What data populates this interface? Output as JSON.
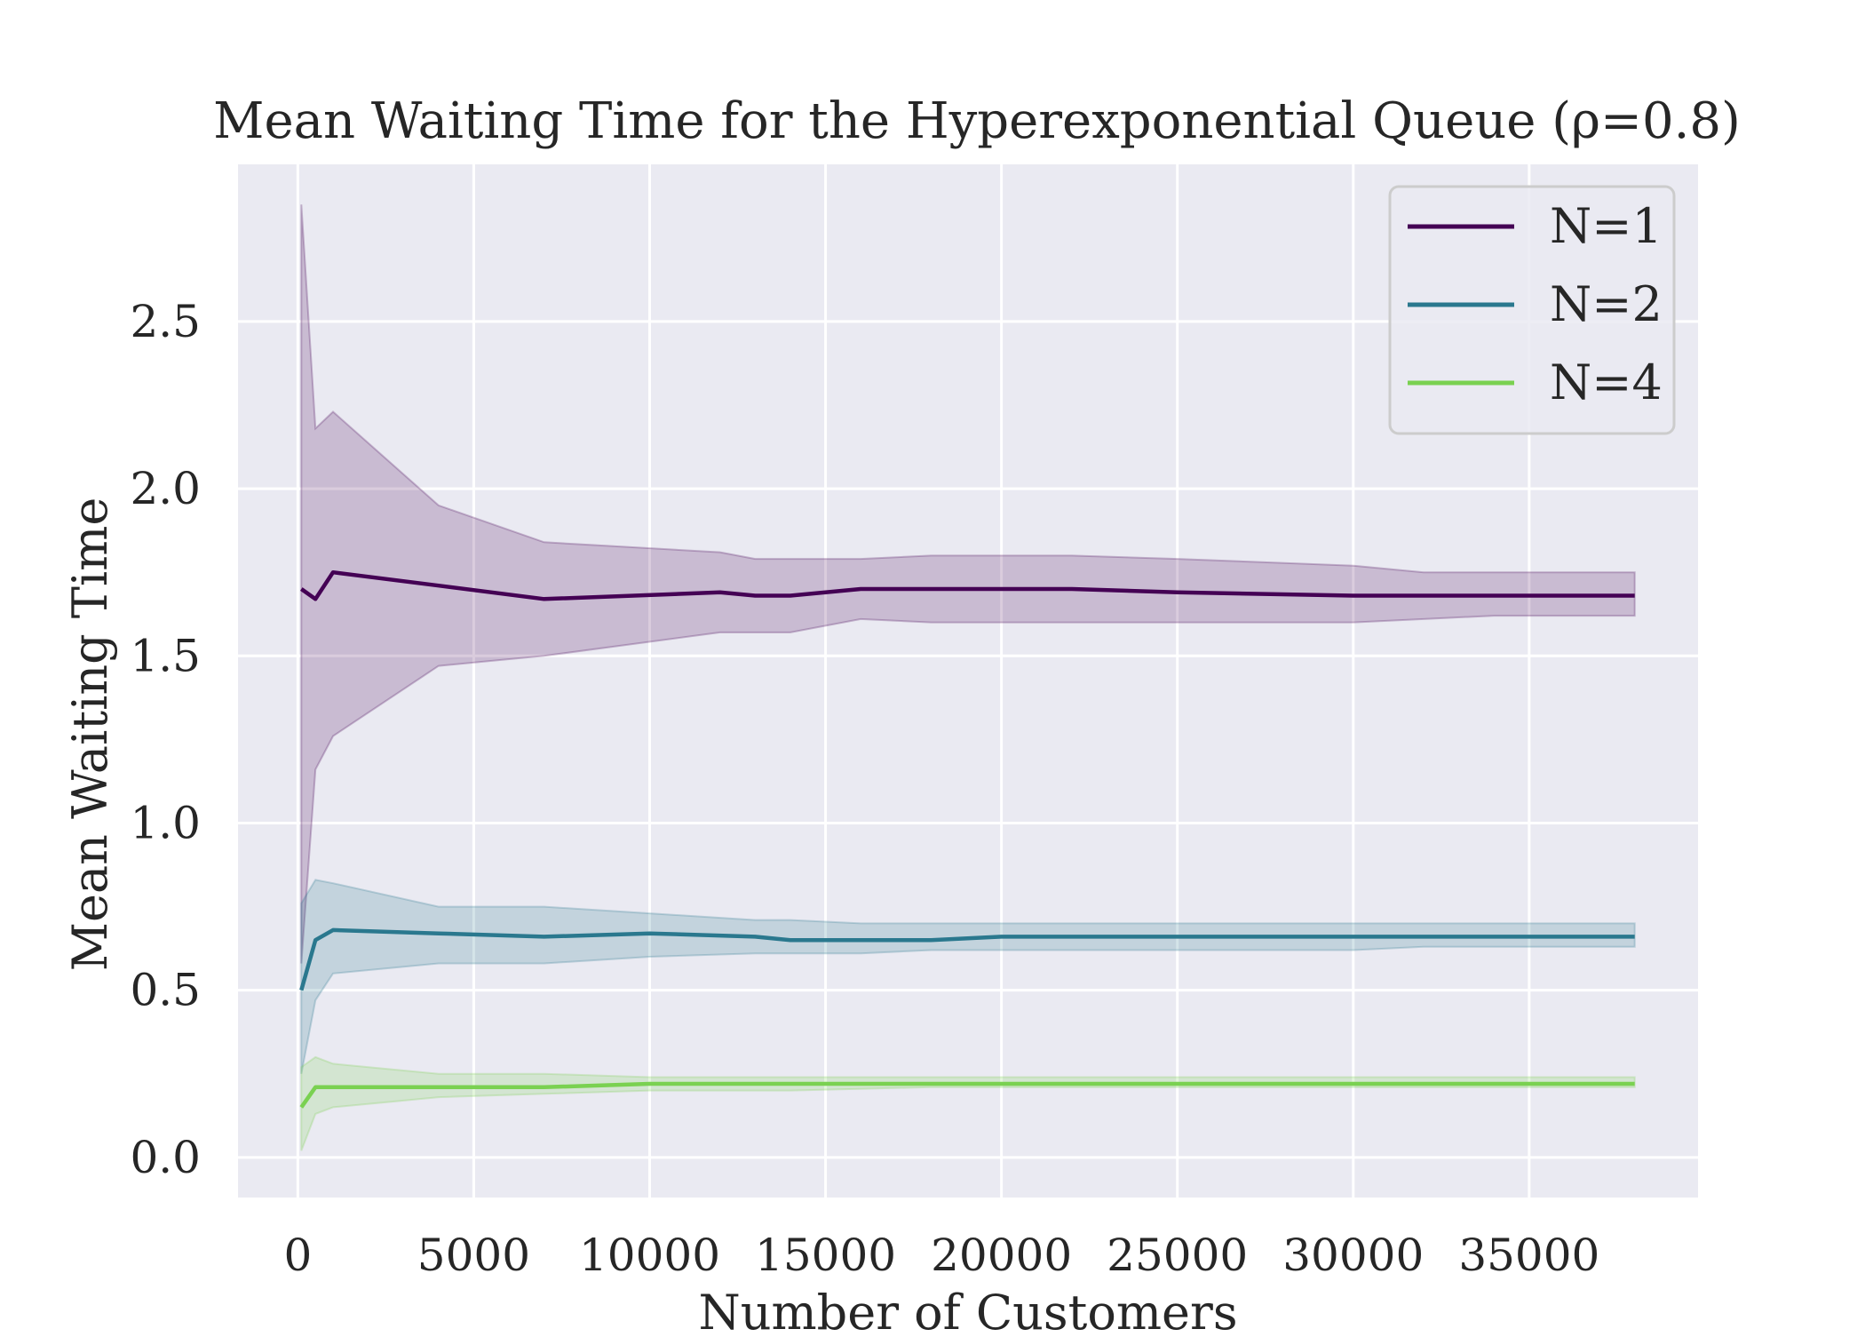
{
  "chart_data": {
    "type": "line",
    "title": "Mean Waiting Time for the Hyperexponential Queue (ρ=0.8)",
    "xlabel": "Number of Customers",
    "ylabel": "Mean Waiting Time",
    "xlim": [
      -1700,
      39800
    ],
    "ylim": [
      -0.12,
      2.97
    ],
    "xticks": [
      0,
      5000,
      10000,
      15000,
      20000,
      25000,
      30000,
      35000
    ],
    "xtick_labels": [
      "0",
      "5000",
      "10000",
      "15000",
      "20000",
      "25000",
      "30000",
      "35000"
    ],
    "yticks": [
      0.0,
      0.5,
      1.0,
      1.5,
      2.0,
      2.5
    ],
    "ytick_labels": [
      "0.0",
      "0.5",
      "1.0",
      "1.5",
      "2.0",
      "2.5"
    ],
    "grid": true,
    "legend_position": "top-right",
    "series": [
      {
        "name": "N=1",
        "color": "#440154",
        "x": [
          100,
          500,
          1000,
          4000,
          7000,
          12000,
          13000,
          14000,
          16000,
          18000,
          19000,
          22000,
          25000,
          30000,
          32000,
          34000,
          36000,
          38000
        ],
        "y": [
          1.7,
          1.67,
          1.75,
          1.71,
          1.67,
          1.69,
          1.68,
          1.68,
          1.7,
          1.7,
          1.7,
          1.7,
          1.69,
          1.68,
          1.68,
          1.68,
          1.68,
          1.68
        ],
        "lower": [
          0.58,
          1.16,
          1.26,
          1.47,
          1.5,
          1.57,
          1.57,
          1.57,
          1.61,
          1.6,
          1.6,
          1.6,
          1.6,
          1.6,
          1.61,
          1.62,
          1.62,
          1.62
        ],
        "upper": [
          2.85,
          2.18,
          2.23,
          1.95,
          1.84,
          1.81,
          1.79,
          1.79,
          1.79,
          1.8,
          1.8,
          1.8,
          1.79,
          1.77,
          1.75,
          1.75,
          1.75,
          1.75
        ]
      },
      {
        "name": "N=2",
        "color": "#2a788e",
        "x": [
          100,
          500,
          1000,
          4000,
          7000,
          10000,
          13000,
          14000,
          16000,
          18000,
          20000,
          25000,
          30000,
          32000,
          35000,
          38000
        ],
        "y": [
          0.5,
          0.65,
          0.68,
          0.67,
          0.66,
          0.67,
          0.66,
          0.65,
          0.65,
          0.65,
          0.66,
          0.66,
          0.66,
          0.66,
          0.66,
          0.66
        ],
        "lower": [
          0.25,
          0.47,
          0.55,
          0.58,
          0.58,
          0.6,
          0.61,
          0.61,
          0.61,
          0.62,
          0.62,
          0.62,
          0.62,
          0.63,
          0.63,
          0.63
        ],
        "upper": [
          0.76,
          0.83,
          0.82,
          0.75,
          0.75,
          0.73,
          0.71,
          0.71,
          0.7,
          0.7,
          0.7,
          0.7,
          0.7,
          0.7,
          0.7,
          0.7
        ]
      },
      {
        "name": "N=4",
        "color": "#7ad151",
        "x": [
          100,
          500,
          1000,
          4000,
          7000,
          10000,
          14000,
          18000,
          20000,
          25000,
          30000,
          35000,
          38000
        ],
        "y": [
          0.15,
          0.21,
          0.21,
          0.21,
          0.21,
          0.22,
          0.22,
          0.22,
          0.22,
          0.22,
          0.22,
          0.22,
          0.22
        ],
        "lower": [
          0.02,
          0.13,
          0.15,
          0.18,
          0.19,
          0.2,
          0.2,
          0.21,
          0.21,
          0.21,
          0.21,
          0.21,
          0.21
        ],
        "upper": [
          0.27,
          0.3,
          0.28,
          0.25,
          0.25,
          0.24,
          0.24,
          0.24,
          0.24,
          0.24,
          0.24,
          0.24,
          0.24
        ]
      }
    ]
  }
}
